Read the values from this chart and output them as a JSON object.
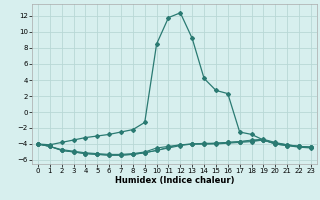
{
  "xlabel": "Humidex (Indice chaleur)",
  "background_color": "#d7efee",
  "grid_color": "#b8d8d6",
  "line_color": "#2a7a72",
  "x_values": [
    0,
    1,
    2,
    3,
    4,
    5,
    6,
    7,
    8,
    9,
    10,
    11,
    12,
    13,
    14,
    15,
    16,
    17,
    18,
    19,
    20,
    21,
    22,
    23
  ],
  "line1": [
    -4.0,
    -4.1,
    -3.8,
    -3.5,
    -3.2,
    -3.0,
    -2.8,
    -2.5,
    -2.2,
    -1.3,
    8.5,
    11.8,
    12.4,
    9.2,
    4.2,
    2.7,
    2.3,
    -2.5,
    -2.8,
    -3.5,
    -3.9,
    -4.1,
    -4.3,
    -4.4
  ],
  "line2": [
    -4.0,
    -4.3,
    -4.7,
    -4.9,
    -5.1,
    -5.2,
    -5.3,
    -5.3,
    -5.2,
    -5.0,
    -4.5,
    -4.3,
    -4.1,
    -4.0,
    -4.0,
    -3.9,
    -3.8,
    -3.7,
    -3.6,
    -3.5,
    -4.0,
    -4.2,
    -4.3,
    -4.4
  ],
  "line3": [
    -4.0,
    -4.3,
    -4.8,
    -5.0,
    -5.2,
    -5.3,
    -5.4,
    -5.4,
    -5.3,
    -5.1,
    -4.8,
    -4.5,
    -4.2,
    -4.0,
    -4.0,
    -4.0,
    -3.9,
    -3.8,
    -3.7,
    -3.5,
    -4.0,
    -4.2,
    -4.4,
    -4.5
  ],
  "line4": [
    -4.0,
    -4.3,
    -4.8,
    -5.0,
    -5.2,
    -5.3,
    -5.4,
    -5.4,
    -5.3,
    -5.1,
    -4.8,
    -4.4,
    -4.1,
    -4.0,
    -3.9,
    -3.9,
    -3.8,
    -3.7,
    -3.5,
    -3.4,
    -3.8,
    -4.1,
    -4.3,
    -4.4
  ],
  "ylim": [
    -6.5,
    13.5
  ],
  "xlim": [
    -0.5,
    23.5
  ],
  "yticks": [
    -6,
    -4,
    -2,
    0,
    2,
    4,
    6,
    8,
    10,
    12
  ],
  "xticks": [
    0,
    1,
    2,
    3,
    4,
    5,
    6,
    7,
    8,
    9,
    10,
    11,
    12,
    13,
    14,
    15,
    16,
    17,
    18,
    19,
    20,
    21,
    22,
    23
  ]
}
